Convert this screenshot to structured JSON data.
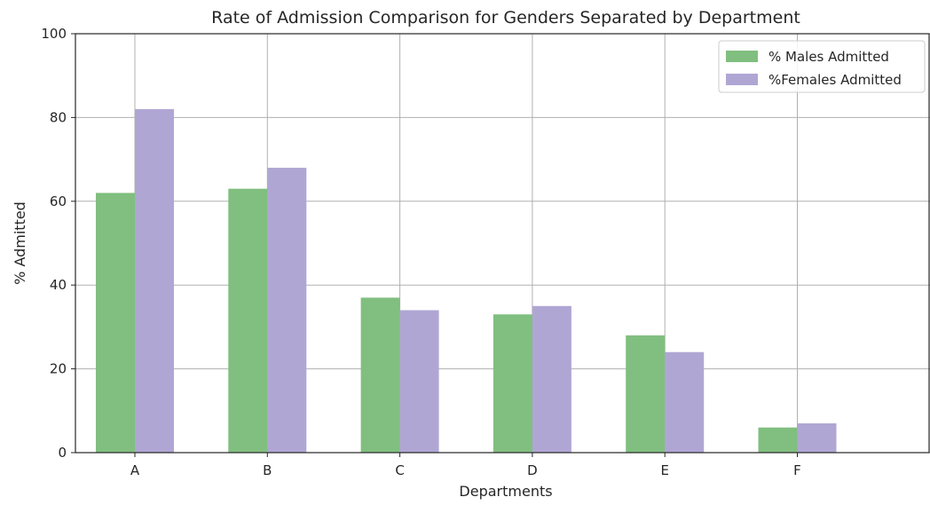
{
  "chart_data": {
    "type": "bar",
    "title": "Rate of Admission Comparison for Genders Separated by Department",
    "xlabel": "Departments",
    "ylabel": "% Admitted",
    "categories": [
      "A",
      "B",
      "C",
      "D",
      "E",
      "F"
    ],
    "ylim": [
      0,
      100
    ],
    "yticks": [
      0,
      20,
      40,
      60,
      80,
      100
    ],
    "grid": true,
    "legend_position": "top-right",
    "series": [
      {
        "name": "% Males Admitted",
        "color": "#80bf7f",
        "values": [
          62,
          63,
          37,
          33,
          28,
          6
        ]
      },
      {
        "name": "%Females Admitted",
        "color": "#b0a6d4",
        "values": [
          82,
          68,
          34,
          35,
          24,
          7
        ]
      }
    ]
  }
}
